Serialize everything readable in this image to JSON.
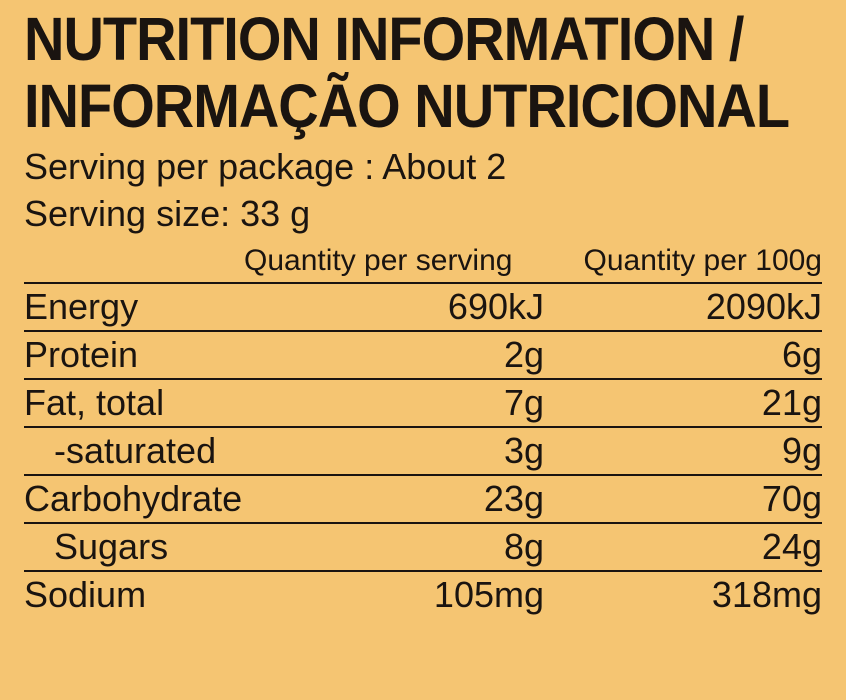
{
  "background_color": "#f5c572",
  "text_color": "#1a1410",
  "title_line1": "NUTRITION INFORMATION /",
  "title_line2": "INFORMAÇÃO NUTRICIONAL",
  "serving_per_package": "Serving per package : About 2",
  "serving_size": "Serving size: 33 g",
  "header_col2": "Quantity per serving",
  "header_col3": "Quantity per 100g",
  "rows": [
    {
      "label": "Energy",
      "indent": false,
      "per_serving": "690kJ",
      "per_100g": "2090kJ"
    },
    {
      "label": "Protein",
      "indent": false,
      "per_serving": "2g",
      "per_100g": "6g"
    },
    {
      "label": "Fat, total",
      "indent": false,
      "per_serving": "7g",
      "per_100g": "21g"
    },
    {
      "label": "-saturated",
      "indent": true,
      "per_serving": "3g",
      "per_100g": "9g"
    },
    {
      "label": "Carbohydrate",
      "indent": false,
      "per_serving": "23g",
      "per_100g": "70g"
    },
    {
      "label": "Sugars",
      "indent": true,
      "per_serving": "8g",
      "per_100g": "24g"
    },
    {
      "label": "Sodium",
      "indent": false,
      "per_serving": "105mg",
      "per_100g": "318mg"
    }
  ],
  "style": {
    "title_fontsize": 56,
    "serving_fontsize": 36,
    "header_fontsize": 30,
    "row_fontsize": 36,
    "rule_color": "#1a1410",
    "rule_width": 2
  }
}
